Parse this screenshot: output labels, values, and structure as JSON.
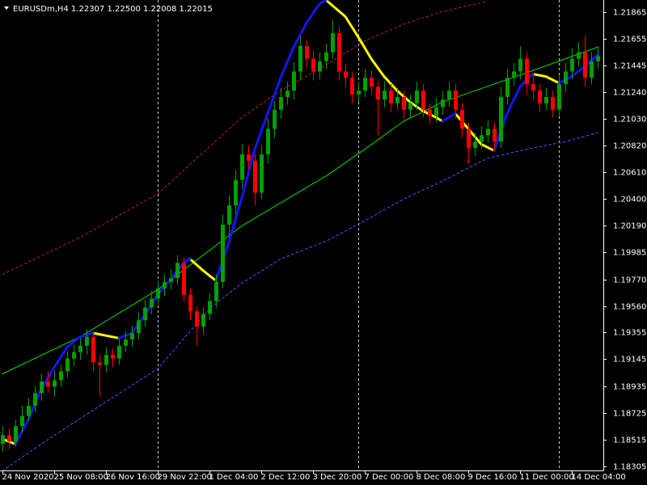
{
  "chart_data": {
    "type": "candlestick",
    "title": "EURUSDm,H4  1.22307 1.22500 1.22008 1.22015",
    "up_color": "#00a000",
    "down_color": "#ff0000",
    "xlim": [
      -0.375,
      92.875
    ],
    "ylim": [
      1.18273,
      1.2196
    ],
    "yticks": [
      1.21865,
      1.21655,
      1.21445,
      {
        "value": 1.2124,
        "label": "1.21240"
      },
      {
        "value": 1.2103,
        "label": "1.21030"
      },
      {
        "value": 1.2082,
        "label": "1.20820"
      },
      {
        "value": 1.2061,
        "label": "1.20610"
      },
      {
        "value": 1.204,
        "label": "1.20400"
      },
      {
        "value": 1.2019,
        "label": "1.20190"
      },
      1.19985,
      {
        "value": 1.1977,
        "label": "1.19770"
      },
      {
        "value": 1.1956,
        "label": "1.19560"
      },
      1.19355,
      1.19145,
      1.18935,
      1.18725,
      1.18515,
      1.18305
    ],
    "xticks": [
      {
        "value": 0,
        "label": "24 Nov 2020"
      },
      {
        "value": 8,
        "label": "25 Nov 08:00"
      },
      {
        "value": 16,
        "label": "26 Nov 16:00"
      },
      {
        "value": 24,
        "label": "29 Nov 22:00"
      },
      {
        "value": 32,
        "label": "1 Dec 04:00"
      },
      {
        "value": 40,
        "label": "2 Dec 12:00"
      },
      {
        "value": 48,
        "label": "3 Dec 20:00"
      },
      {
        "value": 56,
        "label": "7 Dec 00:00"
      },
      {
        "value": 64,
        "label": "8 Dec 08:00"
      },
      {
        "value": 72,
        "label": "9 Dec 16:00"
      },
      {
        "value": 80,
        "label": "11 Dec 00:00"
      },
      {
        "value": 88,
        "label": "14 Dec 04:00"
      }
    ],
    "separators": [
      24,
      55,
      86
    ],
    "ohlc": [
      [
        1.1848,
        1.1862,
        1.1842,
        1.1855
      ],
      [
        1.1855,
        1.186,
        1.1844,
        1.185
      ],
      [
        1.185,
        1.1867,
        1.1846,
        1.1862
      ],
      [
        1.1862,
        1.1878,
        1.1857,
        1.187
      ],
      [
        1.187,
        1.1884,
        1.1866,
        1.1878
      ],
      [
        1.1878,
        1.1893,
        1.1873,
        1.1888
      ],
      [
        1.1888,
        1.1903,
        1.1882,
        1.1897
      ],
      [
        1.1897,
        1.1905,
        1.1888,
        1.1893
      ],
      [
        1.1893,
        1.1906,
        1.1885,
        1.1898
      ],
      [
        1.1898,
        1.191,
        1.1893,
        1.1905
      ],
      [
        1.1905,
        1.1921,
        1.19,
        1.1915
      ],
      [
        1.1915,
        1.1926,
        1.1909,
        1.192
      ],
      [
        1.192,
        1.1931,
        1.1914,
        1.1925
      ],
      [
        1.1925,
        1.1938,
        1.1918,
        1.1932
      ],
      [
        1.1932,
        1.1936,
        1.1905,
        1.1912
      ],
      [
        1.1912,
        1.1918,
        1.1885,
        1.191
      ],
      [
        1.191,
        1.1924,
        1.1904,
        1.1918
      ],
      [
        1.1918,
        1.1923,
        1.1908,
        1.1915
      ],
      [
        1.1915,
        1.1931,
        1.191,
        1.1925
      ],
      [
        1.1925,
        1.1936,
        1.192,
        1.193
      ],
      [
        1.193,
        1.1941,
        1.1924,
        1.1935
      ],
      [
        1.1935,
        1.1951,
        1.193,
        1.1945
      ],
      [
        1.1945,
        1.1961,
        1.194,
        1.1955
      ],
      [
        1.1955,
        1.1968,
        1.195,
        1.1962
      ],
      [
        1.1962,
        1.1976,
        1.1957,
        1.197
      ],
      [
        1.197,
        1.1981,
        1.1964,
        1.1975
      ],
      [
        1.1975,
        1.1985,
        1.1969,
        1.1978
      ],
      [
        1.1978,
        1.1996,
        1.1973,
        1.199
      ],
      [
        1.199,
        1.1994,
        1.196,
        1.1965
      ],
      [
        1.1965,
        1.197,
        1.1945,
        1.1952
      ],
      [
        1.1952,
        1.1956,
        1.1925,
        1.194
      ],
      [
        1.194,
        1.1955,
        1.1934,
        1.195
      ],
      [
        1.195,
        1.1966,
        1.1945,
        1.196
      ],
      [
        1.196,
        1.1981,
        1.1955,
        1.1975
      ],
      [
        1.1975,
        1.2028,
        1.197,
        1.202
      ],
      [
        1.202,
        1.2043,
        1.2012,
        1.2035
      ],
      [
        1.2035,
        1.2063,
        1.2028,
        1.2055
      ],
      [
        1.2055,
        1.2083,
        1.2048,
        1.2075
      ],
      [
        1.2075,
        1.2082,
        1.2063,
        1.207
      ],
      [
        1.207,
        1.2075,
        1.2035,
        1.2045
      ],
      [
        1.2045,
        1.2082,
        1.204,
        1.2075
      ],
      [
        1.2075,
        1.2103,
        1.2068,
        1.2095
      ],
      [
        1.2095,
        1.2117,
        1.2088,
        1.211
      ],
      [
        1.211,
        1.2127,
        1.2103,
        1.212
      ],
      [
        1.212,
        1.2132,
        1.2114,
        1.2125
      ],
      [
        1.2125,
        1.2147,
        1.2118,
        1.214
      ],
      [
        1.214,
        1.2168,
        1.2133,
        1.216
      ],
      [
        1.216,
        1.2165,
        1.2143,
        1.215
      ],
      [
        1.215,
        1.2156,
        1.2133,
        1.214
      ],
      [
        1.214,
        1.2155,
        1.2134,
        1.2148
      ],
      [
        1.2148,
        1.2162,
        1.2142,
        1.2155
      ],
      [
        1.2155,
        1.218,
        1.215,
        1.217
      ],
      [
        1.217,
        1.2175,
        1.2133,
        1.214
      ],
      [
        1.214,
        1.2146,
        1.2128,
        1.2135
      ],
      [
        1.2135,
        1.214,
        1.2115,
        1.2122
      ],
      [
        1.2122,
        1.2131,
        1.2116,
        1.2125
      ],
      [
        1.2125,
        1.2142,
        1.212,
        1.2135
      ],
      [
        1.2135,
        1.2141,
        1.2122,
        1.2128
      ],
      [
        1.2128,
        1.2133,
        1.209,
        1.2118
      ],
      [
        1.2118,
        1.2132,
        1.2112,
        1.2125
      ],
      [
        1.2125,
        1.213,
        1.2108,
        1.2115
      ],
      [
        1.2115,
        1.2127,
        1.211,
        1.212
      ],
      [
        1.212,
        1.2125,
        1.2103,
        1.211
      ],
      [
        1.211,
        1.2122,
        1.2104,
        1.2115
      ],
      [
        1.2115,
        1.2132,
        1.211,
        1.2125
      ],
      [
        1.2125,
        1.213,
        1.2104,
        1.211
      ],
      [
        1.211,
        1.2115,
        1.2099,
        1.2105
      ],
      [
        1.2105,
        1.2119,
        1.21,
        1.2112
      ],
      [
        1.2112,
        1.2125,
        1.2106,
        1.2118
      ],
      [
        1.2118,
        1.2132,
        1.2112,
        1.2125
      ],
      [
        1.2125,
        1.213,
        1.2103,
        1.211
      ],
      [
        1.211,
        1.2115,
        1.2088,
        1.2095
      ],
      [
        1.2095,
        1.21,
        1.2068,
        1.208
      ],
      [
        1.208,
        1.2092,
        1.2074,
        1.2085
      ],
      [
        1.2085,
        1.2097,
        1.2079,
        1.209
      ],
      [
        1.209,
        1.2102,
        1.2084,
        1.2095
      ],
      [
        1.2095,
        1.21,
        1.2078,
        1.2085
      ],
      [
        1.2085,
        1.2128,
        1.208,
        1.212
      ],
      [
        1.212,
        1.2142,
        1.2114,
        1.2135
      ],
      [
        1.2135,
        1.2147,
        1.2129,
        1.214
      ],
      [
        1.214,
        1.216,
        1.2134,
        1.215
      ],
      [
        1.215,
        1.2155,
        1.2122,
        1.213
      ],
      [
        1.213,
        1.2137,
        1.2118,
        1.2125
      ],
      [
        1.2125,
        1.213,
        1.2108,
        1.2115
      ],
      [
        1.2115,
        1.2127,
        1.211,
        1.212
      ],
      [
        1.212,
        1.2125,
        1.2104,
        1.211
      ],
      [
        1.211,
        1.2137,
        1.2105,
        1.213
      ],
      [
        1.213,
        1.2147,
        1.2124,
        1.214
      ],
      [
        1.214,
        1.2158,
        1.2134,
        1.215
      ],
      [
        1.215,
        1.2163,
        1.2144,
        1.2155
      ],
      [
        1.2155,
        1.2168,
        1.2128,
        1.2135
      ],
      [
        1.2135,
        1.2155,
        1.213,
        1.2148
      ],
      [
        1.2148,
        1.216,
        1.2142,
        1.2152
      ]
    ],
    "lines": [
      {
        "color": "#b42020",
        "width": 1,
        "dash": true,
        "x": [
          0,
          12,
          24,
          32,
          37,
          43,
          50,
          56,
          62,
          68,
          75
        ],
        "values": [
          1.1981,
          1.201,
          1.2044,
          1.2081,
          1.2104,
          1.2125,
          1.2145,
          1.2164,
          1.2177,
          1.2187,
          1.2195
        ]
      },
      {
        "color": "#00e000",
        "width": 1,
        "dash": false,
        "x": [
          0,
          12,
          24,
          37,
          50,
          56,
          62,
          68,
          81,
          92
        ],
        "values": [
          1.1903,
          1.1932,
          1.1969,
          1.2019,
          1.2058,
          1.2079,
          1.2101,
          1.2116,
          1.2139,
          1.2159
        ]
      },
      {
        "color": "#3c5aff",
        "width": 1,
        "dash": true,
        "x": [
          0,
          6,
          12,
          24,
          32,
          37,
          43,
          50,
          56,
          62,
          68,
          75,
          81,
          87,
          92
        ],
        "values": [
          1.1827,
          1.1848,
          1.1868,
          1.1907,
          1.1954,
          1.1974,
          1.1993,
          1.2007,
          1.2023,
          1.204,
          1.2054,
          1.2072,
          1.2079,
          1.2085,
          1.2092
        ]
      },
      {
        "color": "#ffff00",
        "width": 3,
        "dash": false,
        "x": [
          0,
          2,
          null,
          14,
          18,
          null,
          29,
          31,
          33,
          null,
          50,
          53,
          55,
          57,
          59,
          61,
          63,
          65,
          67,
          68,
          null,
          70,
          72,
          74,
          76,
          null,
          82,
          84,
          86
        ],
        "values": [
          1.1852,
          1.1848,
          null,
          1.1935,
          1.1931,
          null,
          1.1993,
          1.1984,
          1.1976,
          null,
          1.2196,
          1.2183,
          1.2167,
          1.215,
          1.2136,
          1.2125,
          1.2116,
          1.2109,
          1.2104,
          1.2101,
          null,
          1.2107,
          1.2095,
          1.2083,
          1.2078,
          null,
          1.2138,
          1.2136,
          1.2131
        ]
      },
      {
        "color": "#1414ff",
        "width": 3,
        "dash": false,
        "x": [
          2,
          4,
          6,
          8,
          10,
          12,
          14,
          null,
          18,
          20,
          22,
          24,
          26,
          28,
          29,
          null,
          33,
          35,
          37,
          39,
          41,
          43,
          45,
          47,
          49,
          50,
          null,
          68,
          70,
          null,
          76,
          78,
          80,
          82,
          null,
          86,
          88,
          90,
          92
        ],
        "values": [
          1.1848,
          1.1867,
          1.1891,
          1.1908,
          1.1924,
          1.1932,
          1.1935,
          null,
          1.1931,
          1.1935,
          1.1949,
          1.1965,
          1.1977,
          1.199,
          1.1993,
          null,
          1.1976,
          1.2006,
          1.2041,
          1.2079,
          1.2107,
          1.2135,
          1.2159,
          1.2178,
          1.2193,
          1.2196,
          null,
          1.2101,
          1.2107,
          null,
          1.2078,
          1.2107,
          1.2128,
          1.2138,
          null,
          1.2131,
          1.2136,
          1.2144,
          1.2153
        ]
      }
    ]
  }
}
